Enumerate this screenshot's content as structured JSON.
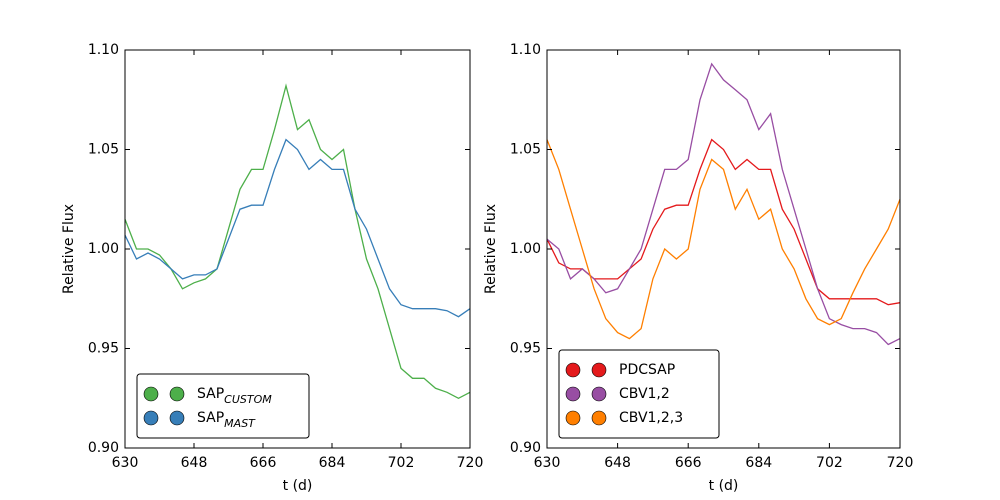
{
  "chart_data": [
    {
      "type": "line",
      "xlabel": "t (d)",
      "ylabel": "Relative Flux",
      "x": [
        630,
        633,
        636,
        639,
        642,
        645,
        648,
        651,
        654,
        657,
        660,
        663,
        666,
        669,
        672,
        675,
        678,
        681,
        684,
        687,
        690,
        693,
        696,
        699,
        702,
        705,
        708,
        711,
        714,
        717,
        720
      ],
      "series": [
        {
          "name": "SAP",
          "subscript": "CUSTOM",
          "color": "#4daf4a",
          "values": [
            1.015,
            1.0,
            1.0,
            0.997,
            0.99,
            0.98,
            0.983,
            0.985,
            0.99,
            1.01,
            1.03,
            1.04,
            1.04,
            1.06,
            1.082,
            1.06,
            1.065,
            1.05,
            1.045,
            1.05,
            1.02,
            0.995,
            0.98,
            0.96,
            0.94,
            0.935,
            0.935,
            0.93,
            0.928,
            0.925,
            0.928
          ]
        },
        {
          "name": "SAP",
          "subscript": "MAST",
          "color": "#377eb8",
          "values": [
            1.007,
            0.995,
            0.998,
            0.995,
            0.99,
            0.985,
            0.987,
            0.987,
            0.99,
            1.005,
            1.02,
            1.022,
            1.022,
            1.04,
            1.055,
            1.05,
            1.04,
            1.045,
            1.04,
            1.04,
            1.02,
            1.01,
            0.995,
            0.98,
            0.972,
            0.97,
            0.97,
            0.97,
            0.969,
            0.966,
            0.97
          ]
        }
      ],
      "xlim": [
        630,
        720
      ],
      "xticks": [
        630,
        648,
        666,
        684,
        702,
        720
      ],
      "ylim": [
        0.9,
        1.1
      ],
      "yticks": [
        {
          "value": 0.9,
          "label": "0.90"
        },
        {
          "value": 0.95,
          "label": "0.95"
        },
        {
          "value": 1.0,
          "label": "1.00"
        },
        {
          "value": 1.05,
          "label": "1.05"
        },
        {
          "value": 1.1,
          "label": "1.10"
        }
      ],
      "legend": "lower left"
    },
    {
      "type": "line",
      "xlabel": "t (d)",
      "ylabel": "Relative Flux",
      "x": [
        630,
        633,
        636,
        639,
        642,
        645,
        648,
        651,
        654,
        657,
        660,
        663,
        666,
        669,
        672,
        675,
        678,
        681,
        684,
        687,
        690,
        693,
        696,
        699,
        702,
        705,
        708,
        711,
        714,
        717,
        720
      ],
      "series": [
        {
          "name": "PDCSAP",
          "color": "#e41a1c",
          "values": [
            1.005,
            0.993,
            0.99,
            0.99,
            0.985,
            0.985,
            0.985,
            0.99,
            0.995,
            1.01,
            1.02,
            1.022,
            1.022,
            1.04,
            1.055,
            1.05,
            1.04,
            1.045,
            1.04,
            1.04,
            1.02,
            1.01,
            0.995,
            0.98,
            0.975,
            0.975,
            0.975,
            0.975,
            0.975,
            0.972,
            0.973
          ]
        },
        {
          "name": "CBV1,2",
          "color": "#984ea3",
          "values": [
            1.005,
            1.0,
            0.985,
            0.99,
            0.985,
            0.978,
            0.98,
            0.99,
            1.0,
            1.02,
            1.04,
            1.04,
            1.045,
            1.075,
            1.093,
            1.085,
            1.08,
            1.075,
            1.06,
            1.068,
            1.04,
            1.02,
            1.0,
            0.98,
            0.965,
            0.962,
            0.96,
            0.96,
            0.958,
            0.952,
            0.955
          ]
        },
        {
          "name": "CBV1,2,3",
          "color": "#ff7f00",
          "values": [
            1.055,
            1.04,
            1.02,
            1.0,
            0.98,
            0.965,
            0.958,
            0.955,
            0.96,
            0.985,
            1.0,
            0.995,
            1.0,
            1.03,
            1.045,
            1.04,
            1.02,
            1.03,
            1.015,
            1.02,
            1.0,
            0.99,
            0.975,
            0.965,
            0.962,
            0.965,
            0.978,
            0.99,
            1.0,
            1.01,
            1.025
          ]
        }
      ],
      "xlim": [
        630,
        720
      ],
      "xticks": [
        630,
        648,
        666,
        684,
        702,
        720
      ],
      "ylim": [
        0.9,
        1.1
      ],
      "yticks": [
        {
          "value": 0.9,
          "label": "0.90"
        },
        {
          "value": 0.95,
          "label": "0.95"
        },
        {
          "value": 1.0,
          "label": "1.00"
        },
        {
          "value": 1.05,
          "label": "1.05"
        },
        {
          "value": 1.1,
          "label": "1.10"
        }
      ],
      "legend": "lower left"
    }
  ]
}
